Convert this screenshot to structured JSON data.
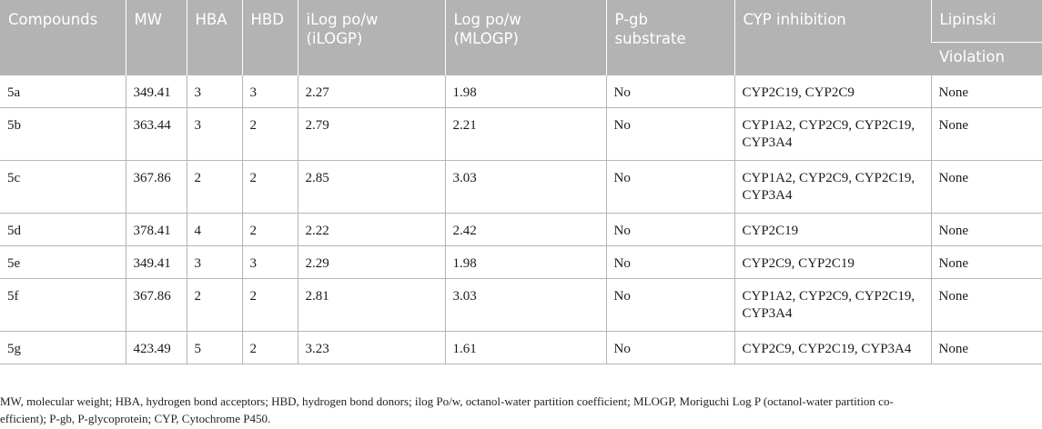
{
  "table": {
    "headers": {
      "compounds": "Compounds",
      "mw": "MW",
      "hba": "HBA",
      "hbd": "HBD",
      "ilogp_line1": "iLog po/w",
      "ilogp_line2": "(iLOGP)",
      "mlogp_line1": "Log po/w",
      "mlogp_line2": "(MLOGP)",
      "pgb_line1": "P-gb",
      "pgb_line2": "substrate",
      "cyp": "CYP inhibition",
      "lipinski_top": "Lipinski",
      "lipinski_bottom": "Violation"
    },
    "rows": [
      {
        "compound": "5a",
        "mw": "349.41",
        "hba": "3",
        "hbd": "3",
        "ilogp": "2.27",
        "mlogp": "1.98",
        "pgb": "No",
        "cyp_line1": "CYP2C19, CYP2C9",
        "cyp_line2": "",
        "lipinski": "None"
      },
      {
        "compound": "5b",
        "mw": "363.44",
        "hba": "3",
        "hbd": "2",
        "ilogp": "2.79",
        "mlogp": "2.21",
        "pgb": "No",
        "cyp_line1": "CYP1A2, CYP2C9, CYP2C19,",
        "cyp_line2": "CYP3A4",
        "lipinski": "None"
      },
      {
        "compound": "5c",
        "mw": "367.86",
        "hba": "2",
        "hbd": "2",
        "ilogp": "2.85",
        "mlogp": "3.03",
        "pgb": "No",
        "cyp_line1": "CYP1A2, CYP2C9, CYP2C19,",
        "cyp_line2": "CYP3A4",
        "lipinski": "None"
      },
      {
        "compound": "5d",
        "mw": "378.41",
        "hba": "4",
        "hbd": "2",
        "ilogp": "2.22",
        "mlogp": "2.42",
        "pgb": "No",
        "cyp_line1": "CYP2C19",
        "cyp_line2": "",
        "lipinski": "None"
      },
      {
        "compound": "5e",
        "mw": "349.41",
        "hba": "3",
        "hbd": "3",
        "ilogp": "2.29",
        "mlogp": "1.98",
        "pgb": "No",
        "cyp_line1": "CYP2C9, CYP2C19",
        "cyp_line2": "",
        "lipinski": "None"
      },
      {
        "compound": "5f",
        "mw": "367.86",
        "hba": "2",
        "hbd": "2",
        "ilogp": "2.81",
        "mlogp": "3.03",
        "pgb": "No",
        "cyp_line1": "CYP1A2, CYP2C9, CYP2C19,",
        "cyp_line2": "CYP3A4",
        "lipinski": "None"
      },
      {
        "compound": "5g",
        "mw": "423.49",
        "hba": "5",
        "hbd": "2",
        "ilogp": "3.23",
        "mlogp": "1.61",
        "pgb": "No",
        "cyp_line1": "CYP2C9, CYP2C19, CYP3A4",
        "cyp_line2": "",
        "lipinski": "None"
      }
    ]
  },
  "footnote": {
    "line1": "MW, molecular weight; HBA, hydrogen bond acceptors; HBD, hydrogen bond donors; ilog Po/w, octanol-water partition coefficient; MLOGP, Moriguchi Log P (octanol-water partition co-",
    "line2": "efficient); P-gb, P-glycoprotein; CYP, Cytochrome P450."
  },
  "colors": {
    "header_bg": "#b3b3b3",
    "header_text": "#ffffff",
    "grid_line": "#b5b5b5",
    "body_text": "#1a1a1a"
  }
}
